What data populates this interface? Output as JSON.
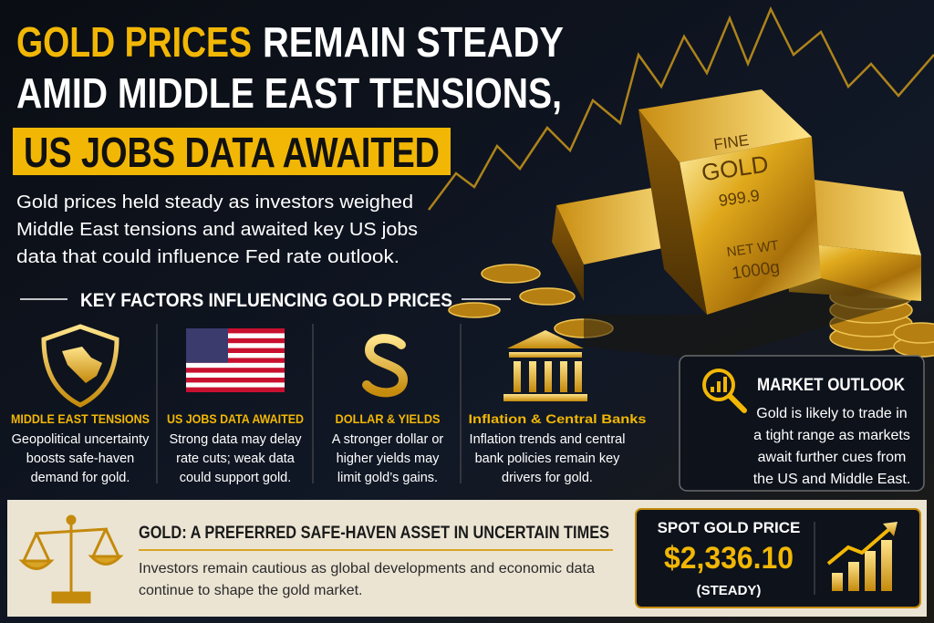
{
  "header": {
    "title_highlight": "GOLD PRICES",
    "title_rest": "REMAIN STEADY",
    "title_line2": "AMID MIDDLE EAST TENSIONS,",
    "title_line3": "US JOBS DATA AWAITED"
  },
  "intro": {
    "lines": [
      "Gold prices held steady as investors weighed",
      "Middle East tensions and awaited key US jobs",
      "data that could influence Fed rate outlook."
    ]
  },
  "bar_stamp": [
    "FINE",
    "GOLD",
    "999.9",
    "NET WT",
    "1000g"
  ],
  "key_factors": {
    "heading": "KEY FACTORS INFLUENCING GOLD PRICES",
    "items": [
      {
        "title": "MIDDLE EAST TENSIONS",
        "lines": [
          "Geopolitical uncertainty",
          "boosts safe-haven",
          "demand for gold."
        ]
      },
      {
        "title": "US JOBS DATA AWAITED",
        "lines": [
          "Strong data may delay",
          "rate cuts; weak data",
          "could support gold."
        ]
      },
      {
        "title": "DOLLAR & YIELDS",
        "lines": [
          "A stronger dollar or",
          "higher yields may",
          "limit gold’s gains."
        ]
      },
      {
        "title": "Inflation & Central Banks",
        "lines": [
          "Inflation trends and central",
          "bank policies remain key",
          "drivers for gold."
        ]
      }
    ]
  },
  "market_outlook": {
    "title": "MARKET OUTLOOK",
    "lines": [
      "Gold is likely to trade in",
      "a tight range as markets",
      "await further cues from",
      "the US and Middle East."
    ]
  },
  "safe_haven": {
    "title": "GOLD: A PREFERRED SAFE-HAVEN ASSET IN UNCERTAIN TIMES",
    "lines": [
      "Investors remain cautious as global developments and economic data",
      "continue to shape the gold market."
    ]
  },
  "spot_price": {
    "label": "SPOT GOLD PRICE",
    "price": "$2,336.10",
    "status": "(STEADY)"
  }
}
